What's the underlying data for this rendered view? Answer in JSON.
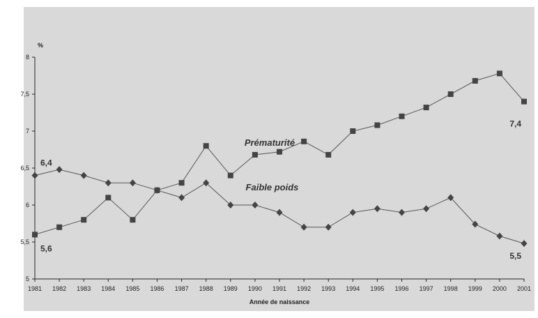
{
  "chart_data": {
    "type": "line",
    "x": [
      1981,
      1982,
      1983,
      1984,
      1985,
      1986,
      1987,
      1988,
      1989,
      1990,
      1991,
      1992,
      1993,
      1994,
      1995,
      1996,
      1997,
      1998,
      1999,
      2000,
      2001
    ],
    "x_tick_labels": [
      "1981",
      "1982",
      "1983",
      "1984",
      "1985",
      "1986",
      "1987",
      "1988",
      "1989",
      "1990",
      "1991",
      "1992",
      "1993",
      "1994",
      "1995",
      "1996",
      "1997",
      "1998",
      "1999",
      "2000",
      "2001"
    ],
    "ylabel": "%",
    "xlabel": "Année de naissance",
    "ylim": [
      5,
      8
    ],
    "y_ticks": [
      5,
      5.5,
      6,
      6.5,
      7,
      7.5,
      8
    ],
    "y_tick_labels": [
      "5",
      "5,5",
      "6",
      "6,5",
      "7",
      "7,5",
      "8"
    ],
    "grid": false,
    "background": "#d9d9d9",
    "line_color": "#555555",
    "marker_color": "#444444",
    "series": [
      {
        "name": "Prématurité",
        "marker": "square",
        "values": [
          5.6,
          5.7,
          5.8,
          6.1,
          5.8,
          6.2,
          6.3,
          6.8,
          6.4,
          6.68,
          6.72,
          6.86,
          6.68,
          7.0,
          7.08,
          7.2,
          7.32,
          7.5,
          7.68,
          7.78,
          7.4
        ]
      },
      {
        "name": "Faible poids",
        "marker": "diamond",
        "values": [
          6.4,
          6.48,
          6.4,
          6.3,
          6.3,
          6.2,
          6.1,
          6.3,
          6.0,
          6.0,
          5.9,
          5.7,
          5.7,
          5.9,
          5.95,
          5.9,
          5.95,
          6.1,
          5.74,
          5.58,
          5.48
        ]
      }
    ],
    "annotations": [
      {
        "text": "6,4",
        "series": 1,
        "index": 0
      },
      {
        "text": "5,6",
        "series": 0,
        "index": 0
      },
      {
        "text": "7,4",
        "series": 0,
        "index": 20
      },
      {
        "text": "5,5",
        "series": 1,
        "index": 20
      }
    ]
  }
}
